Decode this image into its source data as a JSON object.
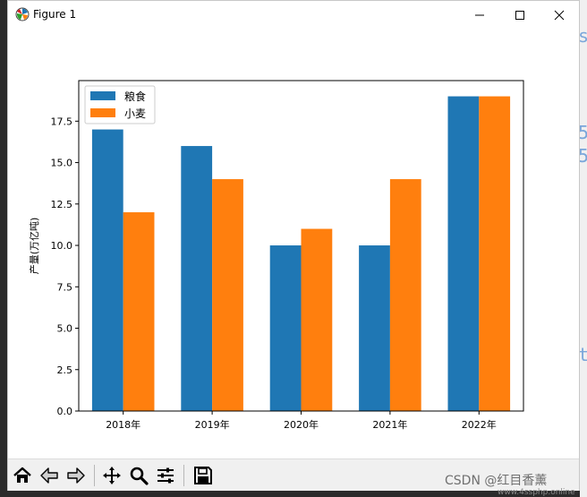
{
  "window": {
    "title": "Figure 1"
  },
  "chart_data": {
    "type": "bar",
    "categories": [
      "2018年",
      "2019年",
      "2020年",
      "2021年",
      "2022年"
    ],
    "series": [
      {
        "name": "粮食",
        "values": [
          17,
          16,
          10,
          10,
          19
        ],
        "color": "#1f77b4"
      },
      {
        "name": "小麦",
        "values": [
          12,
          14,
          11,
          14,
          19
        ],
        "color": "#ff7f0e"
      }
    ],
    "ylabel": "产量(万亿吨)",
    "xlabel": "",
    "ylim": [
      0,
      19.95
    ],
    "yticks": [
      "0.0",
      "2.5",
      "5.0",
      "7.5",
      "10.0",
      "12.5",
      "15.0",
      "17.5"
    ],
    "legend_position": "top-left",
    "grid": false
  },
  "toolbar": {
    "buttons": [
      "home-icon",
      "back-icon",
      "forward-icon",
      "pan-icon",
      "zoom-icon",
      "configure-icon",
      "save-icon"
    ]
  },
  "watermark": "CSDN @红目香薰",
  "watermark_sub": "www.4ssphp.online"
}
